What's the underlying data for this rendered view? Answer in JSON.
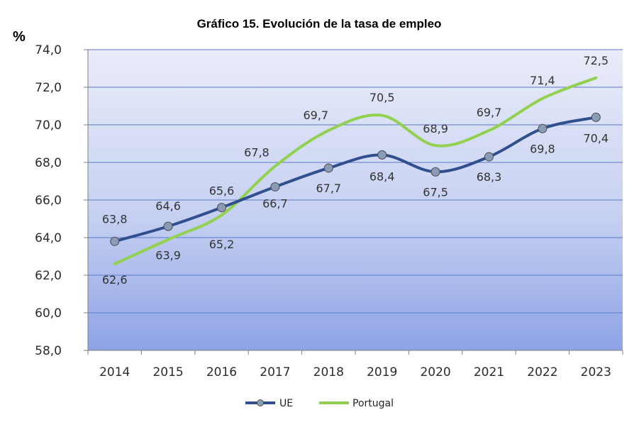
{
  "chart_data": {
    "type": "line",
    "title": "Gráfico 15. Evolución de la tasa de empleo",
    "ylabel": "%",
    "xlabel": "",
    "categories": [
      "2014",
      "2015",
      "2016",
      "2017",
      "2018",
      "2019",
      "2020",
      "2021",
      "2022",
      "2023"
    ],
    "ylim": [
      58.0,
      74.0
    ],
    "yticks": [
      "58,0",
      "60,0",
      "62,0",
      "64,0",
      "66,0",
      "68,0",
      "70,0",
      "72,0",
      "74,0"
    ],
    "grid": true,
    "legend_position": "bottom",
    "series": [
      {
        "name": "UE",
        "values": [
          63.8,
          64.6,
          65.6,
          66.7,
          67.7,
          68.4,
          67.5,
          68.3,
          69.8,
          70.4
        ],
        "labels": [
          "63,8",
          "64,6",
          "65,6",
          "66,7",
          "67,7",
          "68,4",
          "67,5",
          "68,3",
          "69,8",
          "70,4"
        ],
        "color": "#2f4f8f",
        "marker_color": "#8a9bb5",
        "markers": true
      },
      {
        "name": "Portugal",
        "values": [
          62.6,
          63.9,
          65.2,
          67.8,
          69.7,
          70.5,
          68.9,
          69.7,
          71.4,
          72.5
        ],
        "labels": [
          "62,6",
          "63,9",
          "65,2",
          "67,8",
          "69,7",
          "70,5",
          "68,9",
          "69,7",
          "71,4",
          "72,5"
        ],
        "color": "#92d050",
        "markers": false
      }
    ],
    "plot_background": [
      "#e9ecf9",
      "#8ea3e6"
    ]
  }
}
